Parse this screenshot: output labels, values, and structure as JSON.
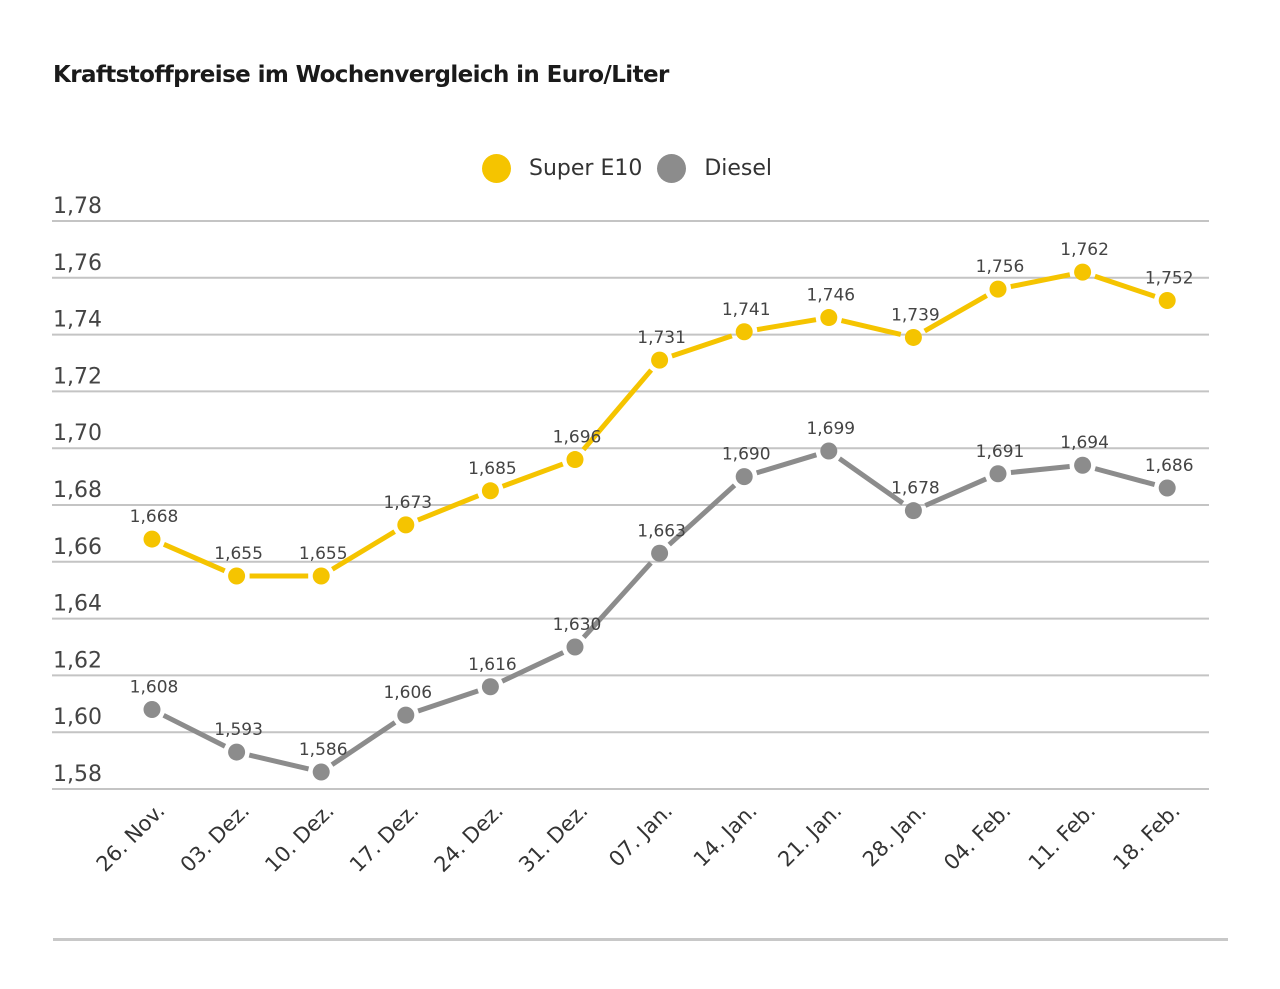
{
  "chart_data": {
    "type": "line",
    "title": "Kraftstoffpreise im Wochenvergleich in Euro/Liter",
    "xlabel": "",
    "ylabel": "",
    "ylim": [
      1.58,
      1.78
    ],
    "yticks": [
      1.78,
      1.76,
      1.74,
      1.72,
      1.7,
      1.68,
      1.66,
      1.64,
      1.62,
      1.6,
      1.58
    ],
    "ytick_labels": [
      "1,78",
      "1,76",
      "1,74",
      "1,72",
      "1,70",
      "1,68",
      "1,66",
      "1,64",
      "1,62",
      "1,60",
      "1,58"
    ],
    "grid": true,
    "legend_position": "top-center",
    "categories": [
      "26. Nov.",
      "03. Dez.",
      "10. Dez.",
      "17. Dez.",
      "24. Dez.",
      "31. Dez.",
      "07. Jan.",
      "14. Jan.",
      "21. Jan.",
      "28. Jan.",
      "04. Feb.",
      "11. Feb.",
      "18. Feb."
    ],
    "series": [
      {
        "name": "Super E10",
        "color": "#f5c400",
        "values": [
          1.668,
          1.655,
          1.655,
          1.673,
          1.685,
          1.696,
          1.731,
          1.741,
          1.746,
          1.739,
          1.756,
          1.762,
          1.752
        ],
        "labels": [
          "1,668",
          "1,655",
          "1,655",
          "1,673",
          "1,685",
          "1,696",
          "1,731",
          "1,741",
          "1,746",
          "1,739",
          "1,756",
          "1,762",
          "1,752"
        ]
      },
      {
        "name": "Diesel",
        "color": "#8c8c8c",
        "values": [
          1.608,
          1.593,
          1.586,
          1.606,
          1.616,
          1.63,
          1.663,
          1.69,
          1.699,
          1.678,
          1.691,
          1.694,
          1.686
        ],
        "labels": [
          "1,608",
          "1,593",
          "1,586",
          "1,606",
          "1,616",
          "1,630",
          "1,663",
          "1,690",
          "1,699",
          "1,678",
          "1,691",
          "1,694",
          "1,686"
        ]
      }
    ]
  }
}
